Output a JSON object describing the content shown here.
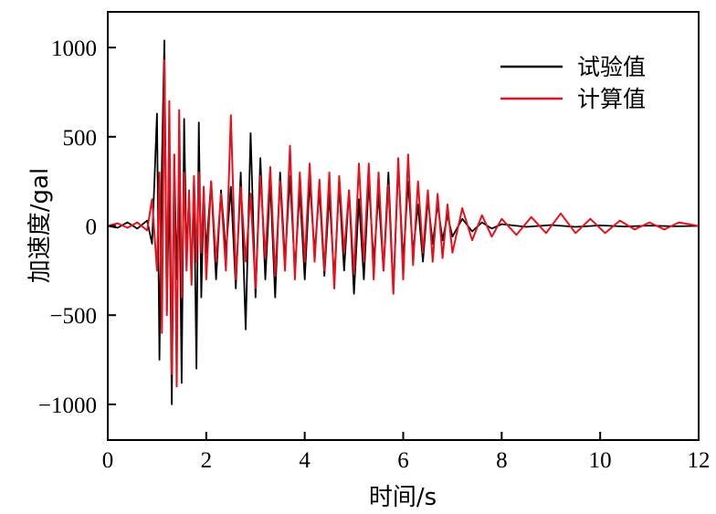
{
  "chart_data": {
    "type": "line",
    "title": "",
    "xlabel": "时间/s",
    "ylabel": "加速度/gal",
    "xlim": [
      0,
      12
    ],
    "ylim": [
      -1200,
      1200
    ],
    "x_ticks": [
      0,
      2,
      4,
      6,
      8,
      10,
      12
    ],
    "y_ticks": [
      -1000,
      -500,
      0,
      500,
      1000
    ],
    "x_tick_labels": [
      "0",
      "2",
      "4",
      "6",
      "8",
      "10",
      "12"
    ],
    "y_tick_labels": [
      "−1000",
      "−500",
      "0",
      "500",
      "1000"
    ],
    "grid": false,
    "legend_position": "top-right",
    "series": [
      {
        "name": "试验值",
        "color": "#000000",
        "x": [
          0.0,
          0.2,
          0.4,
          0.6,
          0.8,
          0.9,
          1.0,
          1.05,
          1.1,
          1.15,
          1.2,
          1.25,
          1.3,
          1.35,
          1.4,
          1.45,
          1.5,
          1.55,
          1.6,
          1.65,
          1.7,
          1.75,
          1.8,
          1.85,
          1.9,
          1.95,
          2.0,
          2.1,
          2.2,
          2.3,
          2.4,
          2.5,
          2.6,
          2.7,
          2.8,
          2.9,
          3.0,
          3.1,
          3.2,
          3.3,
          3.4,
          3.5,
          3.6,
          3.7,
          3.8,
          3.9,
          4.0,
          4.1,
          4.2,
          4.3,
          4.4,
          4.5,
          4.6,
          4.7,
          4.8,
          4.9,
          5.0,
          5.1,
          5.2,
          5.3,
          5.4,
          5.5,
          5.6,
          5.7,
          5.8,
          5.9,
          6.0,
          6.1,
          6.2,
          6.3,
          6.4,
          6.5,
          6.6,
          6.7,
          6.8,
          6.9,
          7.0,
          7.2,
          7.4,
          7.6,
          7.8,
          8.0,
          8.5,
          9.0,
          9.5,
          10.0,
          10.5,
          11.0,
          11.5,
          12.0
        ],
        "y": [
          0,
          -10,
          20,
          -15,
          30,
          -100,
          630,
          -750,
          350,
          1040,
          -480,
          250,
          -1000,
          400,
          -300,
          320,
          -880,
          600,
          -200,
          180,
          -300,
          250,
          -800,
          580,
          -400,
          200,
          -150,
          250,
          -300,
          200,
          -150,
          220,
          -350,
          300,
          -580,
          520,
          -400,
          380,
          -300,
          250,
          -400,
          300,
          -200,
          280,
          -250,
          200,
          -300,
          250,
          -150,
          200,
          -280,
          180,
          -300,
          230,
          -250,
          200,
          -380,
          150,
          -300,
          250,
          -200,
          180,
          -250,
          300,
          -370,
          340,
          -200,
          250,
          -150,
          120,
          -200,
          150,
          -100,
          120,
          -80,
          60,
          -60,
          40,
          -30,
          20,
          -15,
          10,
          -5,
          5,
          -5,
          3,
          -3,
          2,
          -2,
          0
        ]
      },
      {
        "name": "计算值",
        "color": "#e8101c",
        "x": [
          0.0,
          0.2,
          0.4,
          0.6,
          0.8,
          0.9,
          1.0,
          1.05,
          1.1,
          1.15,
          1.2,
          1.25,
          1.3,
          1.35,
          1.4,
          1.45,
          1.5,
          1.55,
          1.6,
          1.65,
          1.7,
          1.75,
          1.8,
          1.85,
          1.9,
          1.95,
          2.0,
          2.1,
          2.2,
          2.3,
          2.4,
          2.5,
          2.6,
          2.7,
          2.8,
          2.9,
          3.0,
          3.1,
          3.2,
          3.3,
          3.4,
          3.5,
          3.6,
          3.7,
          3.8,
          3.9,
          4.0,
          4.1,
          4.2,
          4.3,
          4.4,
          4.5,
          4.6,
          4.7,
          4.8,
          4.9,
          5.0,
          5.1,
          5.2,
          5.3,
          5.4,
          5.5,
          5.6,
          5.7,
          5.8,
          5.9,
          6.0,
          6.1,
          6.2,
          6.3,
          6.4,
          6.5,
          6.6,
          6.7,
          6.8,
          6.9,
          7.0,
          7.2,
          7.4,
          7.6,
          7.8,
          8.0,
          8.3,
          8.6,
          8.9,
          9.2,
          9.5,
          9.8,
          10.1,
          10.4,
          10.7,
          11.0,
          11.3,
          11.6,
          12.0
        ],
        "y": [
          0,
          15,
          -10,
          20,
          -25,
          150,
          -250,
          300,
          -600,
          930,
          -500,
          700,
          -830,
          400,
          -900,
          650,
          -400,
          300,
          -250,
          200,
          -330,
          280,
          -200,
          300,
          -150,
          220,
          -300,
          250,
          -200,
          180,
          -250,
          620,
          -300,
          220,
          -200,
          180,
          -350,
          280,
          -180,
          330,
          -280,
          250,
          -250,
          450,
          -300,
          300,
          -200,
          350,
          -200,
          260,
          -250,
          300,
          -350,
          280,
          -150,
          200,
          -270,
          350,
          -200,
          350,
          -300,
          300,
          -250,
          230,
          -380,
          380,
          -300,
          400,
          -220,
          250,
          -150,
          200,
          -200,
          180,
          -180,
          120,
          -150,
          100,
          -80,
          60,
          -60,
          40,
          -50,
          50,
          -40,
          70,
          -40,
          40,
          -40,
          30,
          -20,
          20,
          -20,
          20,
          0
        ]
      }
    ]
  }
}
